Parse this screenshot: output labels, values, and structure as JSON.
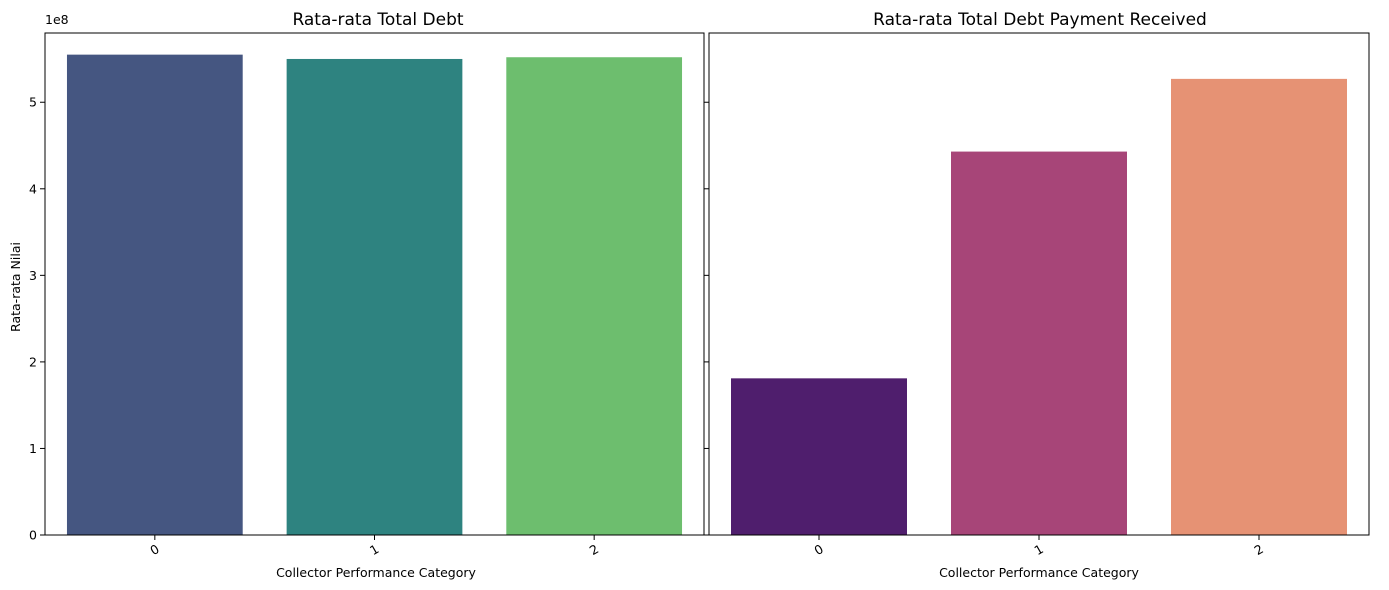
{
  "chart_data": [
    {
      "type": "bar",
      "title": "Rata-rata Total Debt",
      "xlabel": "Collector Performance Category",
      "ylabel": "Rata-rata Nilai",
      "categories": [
        "0",
        "1",
        "2"
      ],
      "values": [
        555000000,
        550000000,
        552000000
      ],
      "colors": [
        "#455681",
        "#2e8380",
        "#6dbe6e"
      ],
      "ylim": [
        0,
        580000000
      ],
      "yticks": [
        0,
        100000000,
        200000000,
        300000000,
        400000000,
        500000000
      ],
      "ytick_labels": [
        "0",
        "1",
        "2",
        "3",
        "4",
        "5"
      ],
      "y_offset_label": "1e8",
      "xtick_rotation_deg": -30,
      "grid": false,
      "legend": "none"
    },
    {
      "type": "bar",
      "title": "Rata-rata Total Debt Payment Received",
      "xlabel": "Collector Performance Category",
      "ylabel": "",
      "categories": [
        "0",
        "1",
        "2"
      ],
      "values": [
        181000000,
        443000000,
        527000000
      ],
      "colors": [
        "#4f1e6d",
        "#a74578",
        "#e69274"
      ],
      "ylim": [
        0,
        580000000
      ],
      "yticks": [
        0,
        100000000,
        200000000,
        300000000,
        400000000,
        500000000
      ],
      "ytick_labels": [
        "",
        "",
        "",
        "",
        "",
        ""
      ],
      "xtick_rotation_deg": -30,
      "grid": false,
      "legend": "none",
      "sharey": true
    }
  ]
}
